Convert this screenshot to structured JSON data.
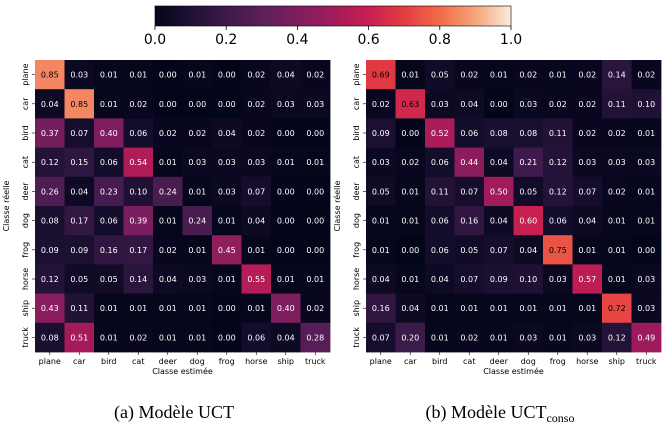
{
  "colorbar": {
    "ticks": [
      "0.0",
      "0.2",
      "0.4",
      "0.6",
      "0.8",
      "1.0"
    ],
    "range": [
      0,
      1
    ]
  },
  "chart_data": [
    {
      "type": "heatmap",
      "panel": "a",
      "xlabel": "Classe estimée",
      "ylabel": "Classe réelle",
      "x_categories": [
        "plane",
        "car",
        "bird",
        "cat",
        "deer",
        "dog",
        "frog",
        "horse",
        "ship",
        "truck"
      ],
      "y_categories": [
        "plane",
        "car",
        "bird",
        "cat",
        "deer",
        "dog",
        "frog",
        "horse",
        "ship",
        "truck"
      ],
      "values": [
        [
          0.85,
          0.03,
          0.01,
          0.01,
          0.0,
          0.01,
          0.0,
          0.02,
          0.04,
          0.02
        ],
        [
          0.04,
          0.85,
          0.01,
          0.02,
          0.0,
          0.0,
          0.0,
          0.02,
          0.03,
          0.03
        ],
        [
          0.37,
          0.07,
          0.4,
          0.06,
          0.02,
          0.02,
          0.04,
          0.02,
          0.0,
          0.0
        ],
        [
          0.12,
          0.15,
          0.06,
          0.54,
          0.01,
          0.03,
          0.03,
          0.03,
          0.01,
          0.01
        ],
        [
          0.26,
          0.04,
          0.23,
          0.1,
          0.24,
          0.01,
          0.03,
          0.07,
          0.0,
          0.0
        ],
        [
          0.08,
          0.17,
          0.06,
          0.39,
          0.01,
          0.24,
          0.01,
          0.04,
          0.0,
          0.0
        ],
        [
          0.09,
          0.09,
          0.16,
          0.17,
          0.02,
          0.01,
          0.45,
          0.01,
          0.0,
          0.0
        ],
        [
          0.12,
          0.05,
          0.05,
          0.14,
          0.04,
          0.03,
          0.01,
          0.55,
          0.01,
          0.01
        ],
        [
          0.43,
          0.11,
          0.01,
          0.01,
          0.01,
          0.01,
          0.0,
          0.01,
          0.4,
          0.02
        ],
        [
          0.08,
          0.51,
          0.01,
          0.02,
          0.01,
          0.01,
          0.0,
          0.06,
          0.04,
          0.28
        ]
      ]
    },
    {
      "type": "heatmap",
      "panel": "b",
      "xlabel": "Classe estimée",
      "ylabel": "Classe réelle",
      "x_categories": [
        "plane",
        "car",
        "bird",
        "cat",
        "deer",
        "dog",
        "frog",
        "horse",
        "ship",
        "truck"
      ],
      "y_categories": [
        "plane",
        "car",
        "bird",
        "cat",
        "deer",
        "dog",
        "frog",
        "horse",
        "ship",
        "truck"
      ],
      "values": [
        [
          0.69,
          0.01,
          0.05,
          0.02,
          0.01,
          0.02,
          0.01,
          0.02,
          0.14,
          0.02
        ],
        [
          0.02,
          0.63,
          0.03,
          0.04,
          0.0,
          0.03,
          0.02,
          0.02,
          0.11,
          0.1
        ],
        [
          0.09,
          0.0,
          0.52,
          0.06,
          0.08,
          0.08,
          0.11,
          0.02,
          0.02,
          0.01
        ],
        [
          0.03,
          0.02,
          0.06,
          0.44,
          0.04,
          0.21,
          0.12,
          0.03,
          0.03,
          0.03
        ],
        [
          0.05,
          0.01,
          0.11,
          0.07,
          0.5,
          0.05,
          0.12,
          0.07,
          0.02,
          0.01
        ],
        [
          0.01,
          0.01,
          0.06,
          0.16,
          0.04,
          0.6,
          0.06,
          0.04,
          0.01,
          0.01
        ],
        [
          0.01,
          0.0,
          0.06,
          0.05,
          0.07,
          0.04,
          0.75,
          0.01,
          0.01,
          0.0
        ],
        [
          0.04,
          0.01,
          0.04,
          0.07,
          0.09,
          0.1,
          0.03,
          0.57,
          0.01,
          0.03
        ],
        [
          0.16,
          0.04,
          0.01,
          0.01,
          0.01,
          0.01,
          0.01,
          0.01,
          0.72,
          0.03
        ],
        [
          0.07,
          0.2,
          0.01,
          0.02,
          0.01,
          0.03,
          0.01,
          0.03,
          0.12,
          0.49
        ]
      ]
    }
  ],
  "captions": {
    "a": "(a) Modèle UCT",
    "b_main": "(b) Modèle UCT",
    "b_sub": "conso"
  }
}
